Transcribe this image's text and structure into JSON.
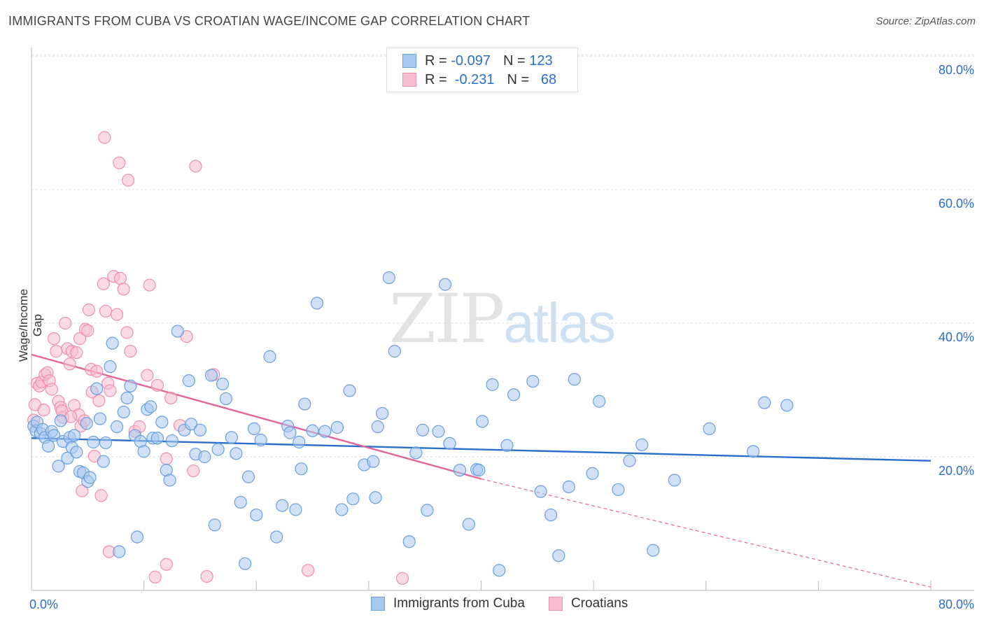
{
  "title": "IMMIGRANTS FROM CUBA VS CROATIAN WAGE/INCOME GAP CORRELATION CHART",
  "source": "Source: ZipAtlas.com",
  "watermark": {
    "zip": "ZIP",
    "atlas": "atlas"
  },
  "stats_legend": {
    "row1": {
      "r_label": "R =",
      "r_value": "-0.097",
      "n_label": "N =",
      "n_value": "123"
    },
    "row2": {
      "r_label": "R =",
      "r_value": " -0.231",
      "n_label": "N =",
      "n_value": "68"
    }
  },
  "colors": {
    "blue_fill": "#a9c8ef",
    "blue_stroke": "#6a9fde",
    "blue_line": "#2a6fc9",
    "pink_fill": "#f6bdd0",
    "pink_stroke": "#ee8fb0",
    "pink_line": "#e0669a",
    "axis_text": "#2a6fc9",
    "grid": "#dddddd"
  },
  "chart_data": {
    "type": "scatter",
    "title": "IMMIGRANTS FROM CUBA VS CROATIAN WAGE/INCOME GAP CORRELATION CHART",
    "xlabel": "",
    "ylabel": "Wage/Income Gap",
    "xlim": [
      0,
      80
    ],
    "ylim": [
      0,
      80
    ],
    "x_tick_labels": [
      "0.0%",
      "80.0%"
    ],
    "y_tick_labels": [
      "20.0%",
      "40.0%",
      "60.0%",
      "80.0%"
    ],
    "y_ticks": [
      20,
      40,
      60,
      80
    ],
    "legend": [
      "Immigrants from Cuba",
      "Croatians"
    ],
    "series": [
      {
        "name": "Immigrants from Cuba",
        "r": -0.097,
        "n": 123,
        "trend": {
          "x0": 0,
          "y0": 22.8,
          "x1": 80,
          "y1": 19.4
        },
        "points": [
          [
            0.2,
            24.6
          ],
          [
            0.4,
            23.9
          ],
          [
            0.5,
            25.2
          ],
          [
            0.8,
            23.5
          ],
          [
            1.0,
            24.1
          ],
          [
            1.2,
            22.9
          ],
          [
            1.5,
            21.6
          ],
          [
            1.8,
            23.8
          ],
          [
            2.0,
            23.2
          ],
          [
            2.4,
            18.6
          ],
          [
            2.6,
            25.4
          ],
          [
            2.8,
            22.3
          ],
          [
            3.2,
            19.8
          ],
          [
            3.4,
            22.9
          ],
          [
            3.6,
            21.4
          ],
          [
            3.8,
            23.2
          ],
          [
            4.0,
            20.7
          ],
          [
            4.3,
            17.8
          ],
          [
            4.6,
            17.6
          ],
          [
            4.9,
            25.0
          ],
          [
            5.0,
            16.3
          ],
          [
            5.2,
            16.9
          ],
          [
            5.5,
            22.2
          ],
          [
            5.8,
            30.2
          ],
          [
            6.1,
            25.7
          ],
          [
            6.4,
            19.3
          ],
          [
            6.6,
            22.1
          ],
          [
            7.0,
            33.5
          ],
          [
            7.2,
            37.0
          ],
          [
            7.6,
            24.5
          ],
          [
            7.8,
            5.8
          ],
          [
            8.2,
            26.7
          ],
          [
            8.5,
            28.8
          ],
          [
            8.8,
            30.6
          ],
          [
            9.2,
            23.2
          ],
          [
            9.4,
            8.0
          ],
          [
            9.7,
            22.3
          ],
          [
            10.0,
            20.8
          ],
          [
            10.3,
            27.1
          ],
          [
            10.6,
            27.5
          ],
          [
            10.8,
            22.8
          ],
          [
            11.2,
            22.8
          ],
          [
            11.6,
            25.2
          ],
          [
            12.0,
            18.0
          ],
          [
            12.3,
            16.5
          ],
          [
            12.5,
            22.4
          ],
          [
            13.0,
            38.8
          ],
          [
            13.6,
            24.0
          ],
          [
            14.0,
            31.4
          ],
          [
            14.2,
            24.9
          ],
          [
            14.6,
            20.4
          ],
          [
            15.0,
            24.0
          ],
          [
            15.4,
            20.0
          ],
          [
            16.0,
            32.2
          ],
          [
            16.3,
            9.8
          ],
          [
            16.6,
            21.1
          ],
          [
            17.0,
            30.9
          ],
          [
            17.3,
            28.7
          ],
          [
            17.8,
            22.9
          ],
          [
            18.2,
            20.5
          ],
          [
            18.6,
            13.2
          ],
          [
            19.0,
            4.0
          ],
          [
            19.3,
            17.0
          ],
          [
            19.8,
            24.2
          ],
          [
            20.0,
            11.3
          ],
          [
            20.4,
            22.5
          ],
          [
            21.2,
            35.0
          ],
          [
            21.8,
            8.0
          ],
          [
            22.3,
            12.7
          ],
          [
            22.8,
            24.6
          ],
          [
            23.0,
            23.6
          ],
          [
            23.5,
            12.1
          ],
          [
            23.8,
            22.2
          ],
          [
            24.0,
            18.2
          ],
          [
            24.3,
            27.9
          ],
          [
            25.0,
            23.9
          ],
          [
            25.4,
            43.0
          ],
          [
            26.1,
            23.8
          ],
          [
            27.2,
            24.4
          ],
          [
            27.6,
            12.1
          ],
          [
            28.3,
            29.9
          ],
          [
            28.6,
            13.7
          ],
          [
            29.6,
            18.8
          ],
          [
            30.4,
            19.3
          ],
          [
            30.6,
            13.9
          ],
          [
            30.8,
            24.5
          ],
          [
            31.2,
            26.5
          ],
          [
            31.8,
            46.8
          ],
          [
            32.3,
            35.8
          ],
          [
            33.6,
            7.3
          ],
          [
            34.2,
            20.6
          ],
          [
            34.8,
            24.0
          ],
          [
            35.2,
            12.0
          ],
          [
            36.2,
            23.8
          ],
          [
            36.8,
            45.8
          ],
          [
            37.2,
            22.0
          ],
          [
            38.1,
            18.0
          ],
          [
            38.9,
            9.9
          ],
          [
            39.6,
            18.1
          ],
          [
            39.8,
            18.0
          ],
          [
            40.1,
            25.3
          ],
          [
            41.0,
            30.8
          ],
          [
            41.6,
            3.0
          ],
          [
            42.3,
            21.7
          ],
          [
            42.9,
            29.3
          ],
          [
            44.6,
            31.3
          ],
          [
            45.3,
            14.8
          ],
          [
            46.2,
            11.3
          ],
          [
            46.9,
            5.2
          ],
          [
            47.8,
            15.5
          ],
          [
            48.3,
            31.6
          ],
          [
            49.9,
            17.5
          ],
          [
            50.5,
            28.3
          ],
          [
            52.2,
            15.1
          ],
          [
            53.2,
            19.4
          ],
          [
            54.3,
            21.8
          ],
          [
            55.3,
            6.0
          ],
          [
            57.2,
            16.5
          ],
          [
            60.3,
            24.2
          ],
          [
            64.2,
            20.8
          ],
          [
            65.2,
            28.1
          ],
          [
            67.2,
            27.7
          ]
        ]
      },
      {
        "name": "Croatians",
        "r": -0.231,
        "n": 68,
        "trend": {
          "x0": 0,
          "y0": 35.3,
          "x1": 40.0,
          "y1": 16.7
        },
        "trend_dashed": {
          "x0": 40.0,
          "y0": 16.7,
          "x1": 80,
          "y1": -1.9
        },
        "points": [
          [
            0.2,
            25.5
          ],
          [
            0.3,
            27.8
          ],
          [
            0.5,
            31.0
          ],
          [
            0.7,
            30.6
          ],
          [
            0.9,
            31.2
          ],
          [
            1.2,
            32.3
          ],
          [
            1.4,
            32.6
          ],
          [
            1.6,
            31.4
          ],
          [
            1.8,
            30.1
          ],
          [
            2.0,
            37.7
          ],
          [
            2.2,
            35.8
          ],
          [
            2.4,
            28.3
          ],
          [
            2.6,
            27.4
          ],
          [
            2.8,
            25.9
          ],
          [
            3.0,
            40.0
          ],
          [
            3.2,
            36.2
          ],
          [
            3.4,
            33.9
          ],
          [
            3.6,
            35.8
          ],
          [
            3.8,
            27.7
          ],
          [
            4.0,
            35.6
          ],
          [
            4.2,
            26.3
          ],
          [
            4.3,
            37.7
          ],
          [
            4.4,
            24.6
          ],
          [
            4.5,
            14.9
          ],
          [
            4.8,
            39.1
          ],
          [
            5.0,
            38.9
          ],
          [
            5.1,
            42.0
          ],
          [
            5.3,
            33.1
          ],
          [
            5.4,
            29.7
          ],
          [
            5.6,
            20.1
          ],
          [
            5.8,
            32.8
          ],
          [
            6.0,
            28.4
          ],
          [
            6.2,
            14.2
          ],
          [
            6.4,
            45.9
          ],
          [
            6.6,
            41.8
          ],
          [
            6.8,
            31.0
          ],
          [
            7.0,
            29.9
          ],
          [
            7.3,
            47.0
          ],
          [
            7.6,
            41.3
          ],
          [
            7.9,
            46.7
          ],
          [
            8.2,
            45.1
          ],
          [
            8.5,
            38.6
          ],
          [
            8.8,
            35.8
          ],
          [
            9.2,
            23.8
          ],
          [
            9.6,
            24.5
          ],
          [
            10.3,
            32.2
          ],
          [
            10.5,
            45.7
          ],
          [
            11.2,
            30.7
          ],
          [
            12.0,
            19.7
          ],
          [
            12.4,
            28.8
          ],
          [
            13.2,
            24.7
          ],
          [
            13.8,
            38.0
          ],
          [
            14.4,
            17.9
          ],
          [
            14.6,
            63.5
          ],
          [
            16.2,
            32.3
          ],
          [
            6.5,
            67.8
          ],
          [
            7.8,
            64.0
          ],
          [
            8.6,
            61.4
          ],
          [
            1.1,
            27.0
          ],
          [
            2.7,
            26.9
          ],
          [
            6.9,
            5.8
          ],
          [
            12.0,
            3.9
          ],
          [
            11.0,
            2.0
          ],
          [
            24.6,
            3.0
          ],
          [
            33.0,
            1.8
          ],
          [
            15.6,
            2.1
          ],
          [
            3.5,
            26.0
          ],
          [
            4.7,
            25.4
          ]
        ]
      }
    ]
  }
}
